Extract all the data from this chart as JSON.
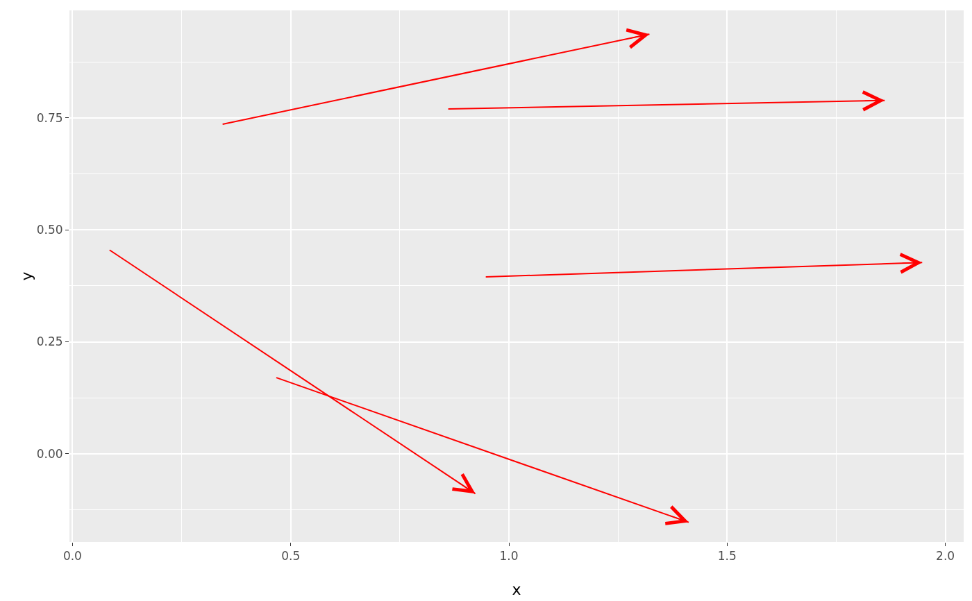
{
  "chart_data": {
    "type": "line",
    "xlabel": "x",
    "ylabel": "y",
    "series": [
      {
        "color": "#ff0000",
        "x": [
          0.344,
          1.322
        ],
        "values": [
          0.736,
          0.937
        ]
      },
      {
        "color": "#ff0000",
        "x": [
          0.861,
          1.861
        ],
        "values": [
          0.77,
          0.789
        ]
      },
      {
        "color": "#ff0000",
        "x": [
          0.947,
          1.947
        ],
        "values": [
          0.395,
          0.427
        ]
      },
      {
        "color": "#ff0000",
        "x": [
          0.085,
          0.923
        ],
        "values": [
          0.455,
          -0.089
        ]
      },
      {
        "color": "#ff0000",
        "x": [
          0.467,
          1.412
        ],
        "values": [
          0.17,
          -0.153
        ]
      }
    ],
    "xlim": [
      -0.007,
      2.042
    ],
    "ylim": [
      -0.197,
      0.99
    ],
    "xticks": [
      {
        "value": 0,
        "label": "0.0"
      },
      0.5,
      {
        "value": 1,
        "label": "1.0"
      },
      1.5,
      {
        "value": 2,
        "label": "2.0"
      }
    ],
    "yticks": [
      {
        "value": 0,
        "label": "0.00"
      },
      0.25,
      {
        "value": 0.5,
        "label": "0.50"
      },
      0.75
    ],
    "grid": true,
    "line_style": "solid"
  }
}
